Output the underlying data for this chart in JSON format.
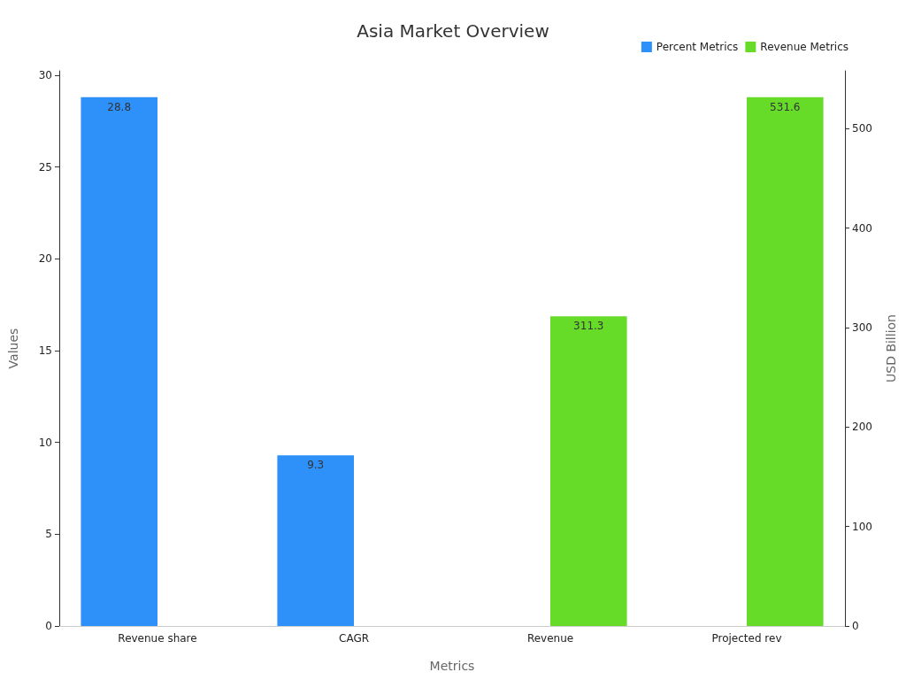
{
  "chart_data": {
    "type": "bar",
    "title": "Asia Market Overview",
    "xlabel": "Metrics",
    "ylabel": "Values",
    "y2label": "USD Billion",
    "categories": [
      "Revenue share",
      "CAGR",
      "Revenue",
      "Projected rev"
    ],
    "series": [
      {
        "name": "Percent Metrics",
        "color": "#2e91fa",
        "values": [
          28.8,
          9.3,
          null,
          null
        ]
      },
      {
        "name": "Revenue Metrics",
        "color": "#66db28",
        "axis": "y2",
        "values": [
          null,
          null,
          311.3,
          531.6
        ]
      }
    ],
    "ylim": [
      0,
      30.24
    ],
    "yticks": [
      0,
      5,
      10,
      15,
      20,
      25,
      30
    ],
    "y2lim": [
      0,
      558.18
    ],
    "y2ticks": [
      0,
      100,
      200,
      300,
      400,
      500
    ],
    "data_labels": true,
    "grid": false,
    "legend": "top right"
  }
}
